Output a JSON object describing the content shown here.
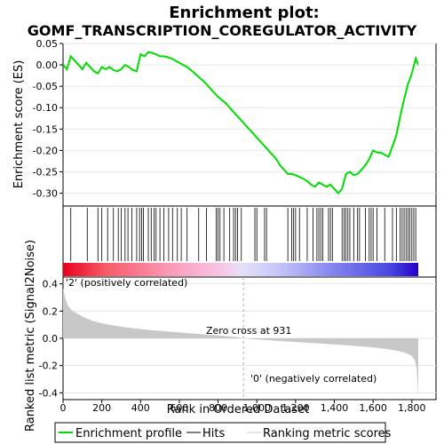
{
  "title_line1": "Enrichment plot:",
  "title_line2": "GOMF_TRANSCRIPTION_COREGULATOR_ACTIVITY",
  "colors": {
    "es_line": "#00dd00",
    "metric_fill": "#c8c8c8",
    "pos_text": "#dd0000",
    "neg_text": "#0000cc",
    "zero_line": "#b0b0b0"
  },
  "chart_data": [
    {
      "type": "line",
      "name": "enrichment-profile",
      "ylabel": "Enrichment score (ES)",
      "xlim": [
        0,
        1833
      ],
      "ylim": [
        -0.33,
        0.05
      ],
      "yticks": [
        0.05,
        0.0,
        -0.05,
        -0.1,
        -0.15,
        -0.2,
        -0.25,
        -0.3
      ],
      "ytick_labels": [
        "0.05",
        "0.00",
        "-0.05",
        "-0.10",
        "-0.15",
        "-0.20",
        "-0.25",
        "-0.30"
      ],
      "grid": true,
      "x": [
        0,
        20,
        40,
        60,
        80,
        100,
        120,
        140,
        160,
        180,
        200,
        220,
        240,
        260,
        280,
        300,
        320,
        340,
        360,
        380,
        400,
        420,
        440,
        460,
        480,
        500,
        520,
        540,
        560,
        580,
        600,
        620,
        640,
        660,
        680,
        700,
        720,
        740,
        760,
        780,
        800,
        820,
        840,
        860,
        880,
        900,
        920,
        940,
        960,
        980,
        1000,
        1020,
        1040,
        1060,
        1080,
        1100,
        1120,
        1140,
        1160,
        1180,
        1200,
        1220,
        1240,
        1260,
        1280,
        1300,
        1320,
        1340,
        1360,
        1380,
        1400,
        1420,
        1440,
        1460,
        1480,
        1500,
        1520,
        1540,
        1560,
        1580,
        1600,
        1620,
        1640,
        1660,
        1680,
        1700,
        1720,
        1740,
        1760,
        1780,
        1800,
        1820,
        1833
      ],
      "y": [
        0.0,
        -0.01,
        0.02,
        0.01,
        0.0,
        -0.01,
        0.005,
        -0.005,
        -0.015,
        -0.02,
        -0.005,
        -0.01,
        -0.005,
        -0.012,
        -0.015,
        -0.01,
        0.0,
        -0.005,
        -0.012,
        -0.015,
        0.025,
        0.02,
        0.03,
        0.028,
        0.025,
        0.02,
        0.02,
        0.018,
        0.015,
        0.01,
        0.005,
        0.0,
        -0.005,
        -0.012,
        -0.02,
        -0.028,
        -0.036,
        -0.045,
        -0.055,
        -0.065,
        -0.075,
        -0.082,
        -0.09,
        -0.1,
        -0.11,
        -0.12,
        -0.13,
        -0.14,
        -0.15,
        -0.16,
        -0.17,
        -0.18,
        -0.19,
        -0.2,
        -0.21,
        -0.22,
        -0.235,
        -0.245,
        -0.255,
        -0.255,
        -0.258,
        -0.262,
        -0.266,
        -0.272,
        -0.28,
        -0.285,
        -0.275,
        -0.28,
        -0.285,
        -0.28,
        -0.29,
        -0.3,
        -0.29,
        -0.255,
        -0.25,
        -0.258,
        -0.255,
        -0.245,
        -0.235,
        -0.22,
        -0.2,
        -0.205,
        -0.205,
        -0.21,
        -0.215,
        -0.19,
        -0.165,
        -0.12,
        -0.08,
        -0.045,
        -0.02,
        0.015,
        0.0
      ]
    },
    {
      "type": "heatmap",
      "name": "hits",
      "hit_positions": [
        40,
        125,
        180,
        200,
        230,
        260,
        285,
        300,
        320,
        335,
        355,
        380,
        395,
        405,
        415,
        440,
        455,
        470,
        480,
        500,
        520,
        545,
        565,
        590,
        610,
        640,
        700,
        740,
        790,
        800,
        810,
        830,
        860,
        880,
        890,
        900,
        920,
        990,
        1000,
        1040,
        1050,
        1160,
        1180,
        1190,
        1200,
        1220,
        1260,
        1290,
        1310,
        1320,
        1330,
        1340,
        1370,
        1380,
        1390,
        1440,
        1450,
        1460,
        1470,
        1480,
        1500,
        1520,
        1530,
        1560,
        1580,
        1590,
        1600,
        1620,
        1660,
        1700,
        1720,
        1740,
        1750,
        1760,
        1770,
        1780,
        1790,
        1800,
        1810,
        1820
      ],
      "gradient_stops": [
        {
          "at": 0,
          "color": "#e8001c"
        },
        {
          "at": 0.12,
          "color": "#f85a68"
        },
        {
          "at": 0.3,
          "color": "#fa9ab8"
        },
        {
          "at": 0.45,
          "color": "#f8c6e8"
        },
        {
          "at": 0.5,
          "color": "#e8e0f8"
        },
        {
          "at": 0.6,
          "color": "#c8c8f8"
        },
        {
          "at": 0.75,
          "color": "#8888f0"
        },
        {
          "at": 0.92,
          "color": "#4848e0"
        },
        {
          "at": 1.0,
          "color": "#2600c8"
        }
      ]
    },
    {
      "type": "area",
      "name": "ranked-list-metric",
      "xlabel": "Rank in Ordered Dataset",
      "ylabel": "Ranked list metric (Signal2Noise)",
      "xlim": [
        0,
        1833
      ],
      "ylim": [
        -0.45,
        0.45
      ],
      "yticks": [
        0.4,
        0.2,
        0.0,
        -0.2,
        -0.4
      ],
      "ytick_labels": [
        "0.4",
        "0.2",
        "0.0",
        "-0.2",
        "-0.4"
      ],
      "xticks": [
        0,
        200,
        400,
        600,
        800,
        1000,
        1200,
        1400,
        1600,
        1800
      ],
      "xtick_labels": [
        "0",
        "200",
        "400",
        "600",
        "800",
        "1,000",
        "1,200",
        "1,400",
        "1,600",
        "1,800"
      ],
      "x": [
        0,
        10,
        25,
        50,
        100,
        150,
        200,
        300,
        400,
        500,
        600,
        700,
        800,
        900,
        931,
        1000,
        1100,
        1200,
        1300,
        1400,
        1500,
        1600,
        1650,
        1700,
        1750,
        1780,
        1800,
        1815,
        1825,
        1833
      ],
      "y": [
        0.37,
        0.3,
        0.24,
        0.2,
        0.16,
        0.13,
        0.11,
        0.085,
        0.068,
        0.055,
        0.043,
        0.032,
        0.022,
        0.008,
        0.0,
        -0.008,
        -0.018,
        -0.027,
        -0.036,
        -0.045,
        -0.055,
        -0.067,
        -0.075,
        -0.085,
        -0.1,
        -0.115,
        -0.13,
        -0.16,
        -0.22,
        -0.42
      ],
      "zero_cross": 931,
      "zero_cross_label": "Zero cross at 931",
      "pos_label": "'2' (positively correlated)",
      "neg_label": "'0' (negatively correlated)"
    }
  ],
  "legend": {
    "position": "bottom",
    "items": [
      {
        "label": "Enrichment profile",
        "color": "#00dd00"
      },
      {
        "label": "Hits",
        "color": "#000000"
      },
      {
        "label": "Ranking metric scores",
        "color": "#c8c8c8"
      }
    ]
  }
}
